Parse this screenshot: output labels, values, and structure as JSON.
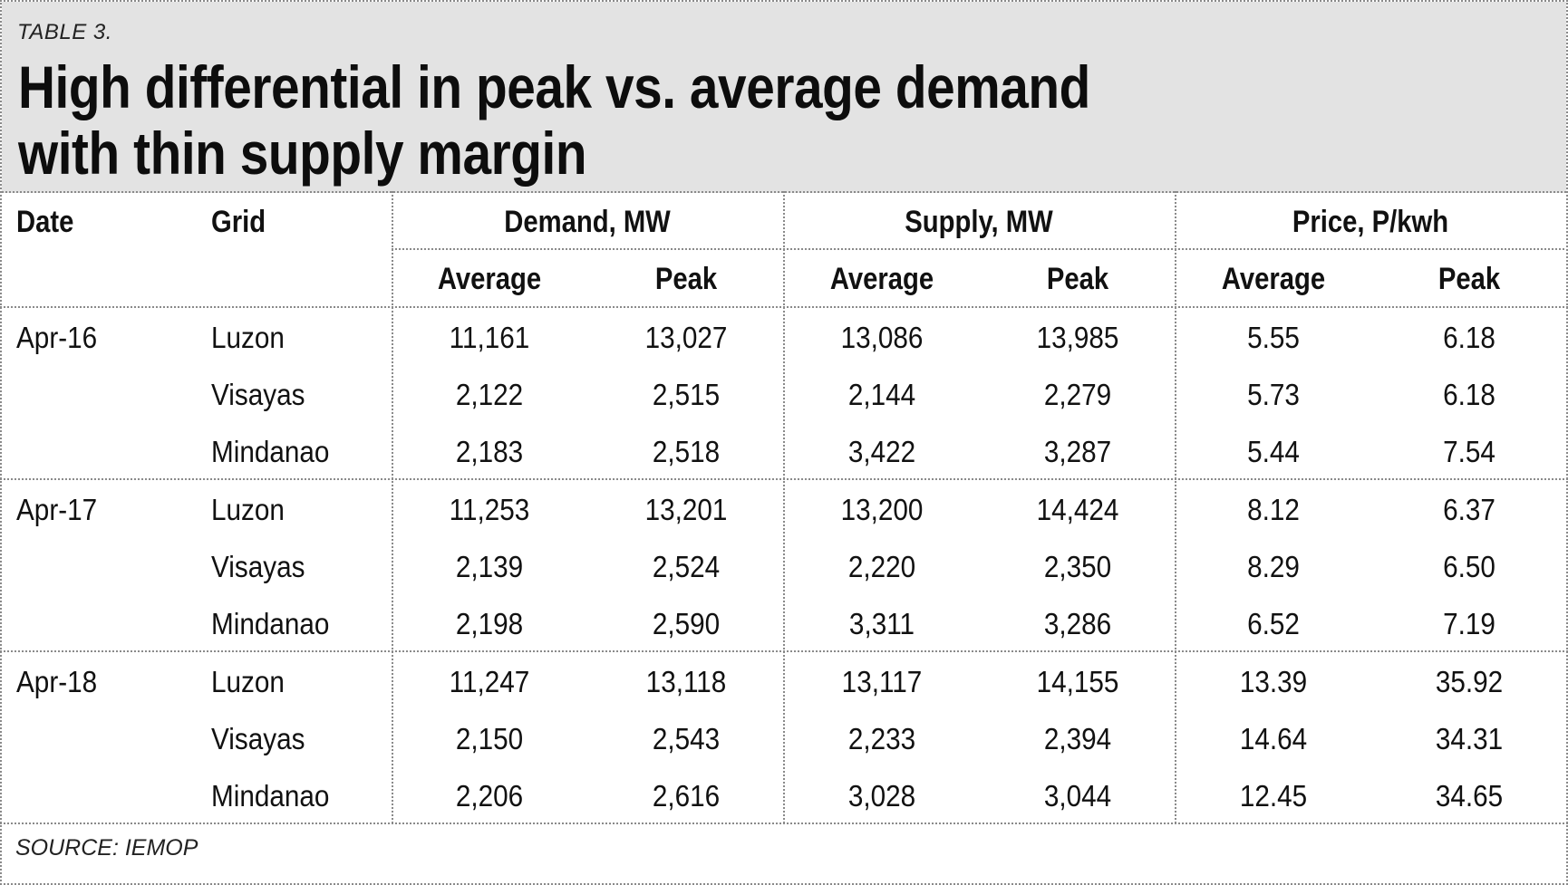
{
  "table_label": "TABLE 3.",
  "title_line1": "High differential in peak vs. average demand",
  "title_line2": "with thin supply margin",
  "headers": {
    "date": "Date",
    "grid": "Grid",
    "demand": "Demand, MW",
    "supply": "Supply, MW",
    "price": "Price, P/kwh",
    "sub": [
      "Average",
      "Peak",
      "Average",
      "Peak",
      "Average",
      "Peak"
    ]
  },
  "groups": [
    {
      "date": "Apr-16",
      "rows": [
        {
          "grid": "Luzon",
          "values": [
            "11,161",
            "13,027",
            "13,086",
            "13,985",
            "5.55",
            "6.18"
          ]
        },
        {
          "grid": "Visayas",
          "values": [
            "2,122",
            "2,515",
            "2,144",
            "2,279",
            "5.73",
            "6.18"
          ]
        },
        {
          "grid": "Mindanao",
          "values": [
            "2,183",
            "2,518",
            "3,422",
            "3,287",
            "5.44",
            "7.54"
          ]
        }
      ]
    },
    {
      "date": "Apr-17",
      "rows": [
        {
          "grid": "Luzon",
          "values": [
            "11,253",
            "13,201",
            "13,200",
            "14,424",
            "8.12",
            "6.37"
          ]
        },
        {
          "grid": "Visayas",
          "values": [
            "2,139",
            "2,524",
            "2,220",
            "2,350",
            "8.29",
            "6.50"
          ]
        },
        {
          "grid": "Mindanao",
          "values": [
            "2,198",
            "2,590",
            "3,311",
            "3,286",
            "6.52",
            "7.19"
          ]
        }
      ]
    },
    {
      "date": "Apr-18",
      "rows": [
        {
          "grid": "Luzon",
          "values": [
            "11,247",
            "13,118",
            "13,117",
            "14,155",
            "13.39",
            "35.92"
          ]
        },
        {
          "grid": "Visayas",
          "values": [
            "2,150",
            "2,543",
            "2,233",
            "2,394",
            "14.64",
            "34.31"
          ]
        },
        {
          "grid": "Mindanao",
          "values": [
            "2,206",
            "2,616",
            "3,028",
            "3,044",
            "12.45",
            "34.65"
          ]
        }
      ]
    }
  ],
  "source": "SOURCE: IEMOP"
}
